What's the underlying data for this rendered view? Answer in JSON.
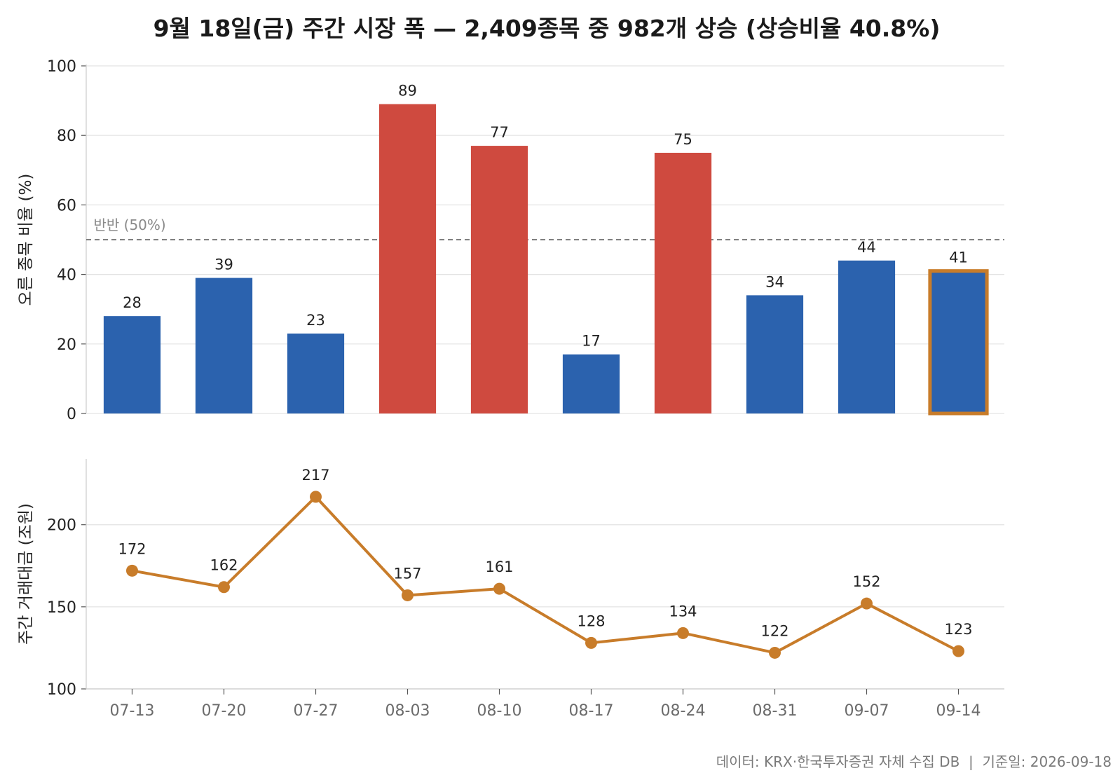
{
  "title": "9월 18일(금) 주간 시장 폭 — 2,409종목 중 982개 상승 (상승비율 40.8%)",
  "footer": "데이터: KRX·한국투자증권 자체 수집 DB  |  기준일: 2026-09-18",
  "colors": {
    "up": "#cf4a3f",
    "down": "#2b62ae",
    "highlight": "#c87c2a",
    "line": "#c87c2a",
    "grid": "#e3e3e3",
    "reference": "#808080"
  },
  "chart_data": [
    {
      "type": "bar",
      "categories": [
        "07-13",
        "07-20",
        "07-27",
        "08-03",
        "08-10",
        "08-17",
        "08-24",
        "08-31",
        "09-07",
        "09-14"
      ],
      "values": [
        28,
        39,
        23,
        89,
        77,
        17,
        75,
        34,
        44,
        41
      ],
      "data_labels": [
        "28",
        "39",
        "23",
        "89",
        "77",
        "17",
        "75",
        "34",
        "44",
        "41"
      ],
      "above_threshold": [
        false,
        false,
        false,
        true,
        true,
        false,
        true,
        false,
        false,
        false
      ],
      "highlighted_category": "09-14",
      "ylabel": "오른 종목 비율 (%)",
      "ylim": [
        0,
        100
      ],
      "yticks": [
        0,
        20,
        40,
        60,
        80,
        100
      ],
      "grid": true,
      "reference_line": {
        "value": 50,
        "label": "반반 (50%)",
        "style": "dashed"
      }
    },
    {
      "type": "line",
      "categories": [
        "07-13",
        "07-20",
        "07-27",
        "08-03",
        "08-10",
        "08-17",
        "08-24",
        "08-31",
        "09-07",
        "09-14"
      ],
      "values": [
        172,
        162,
        217,
        157,
        161,
        128,
        134,
        122,
        152,
        123
      ],
      "data_labels": [
        "172",
        "162",
        "217",
        "157",
        "161",
        "128",
        "134",
        "122",
        "152",
        "123"
      ],
      "ylabel": "주간 거래대금 (조원)",
      "ylim": [
        100,
        240
      ],
      "yticks": [
        100,
        150,
        200
      ],
      "grid": true,
      "markers": true
    }
  ]
}
